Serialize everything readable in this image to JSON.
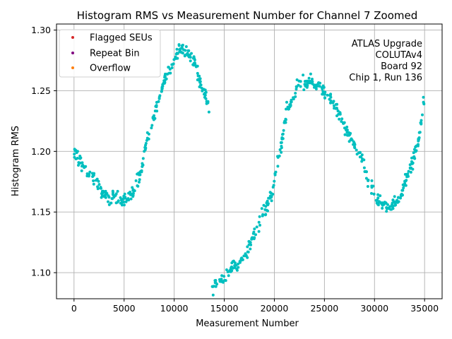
{
  "chart_data": {
    "type": "scatter",
    "title": "Histogram RMS vs Measurement Number for Channel 7 Zoomed",
    "xlabel": "Measurement Number",
    "ylabel": "Histogram RMS",
    "xlim": [
      -1750,
      36750
    ],
    "ylim": [
      1.0785,
      1.305
    ],
    "grid": true,
    "x_ticks": [
      0,
      5000,
      10000,
      15000,
      20000,
      25000,
      30000,
      35000
    ],
    "x_tick_labels": [
      "0",
      "5000",
      "10000",
      "15000",
      "20000",
      "25000",
      "30000",
      "35000"
    ],
    "y_ticks": [
      1.1,
      1.15,
      1.2,
      1.25,
      1.3
    ],
    "y_tick_labels": [
      "1.10",
      "1.15",
      "1.20",
      "1.25",
      "1.30"
    ],
    "legend": {
      "placement": "top-left",
      "entries": [
        {
          "label": "Flagged SEUs",
          "color": "#d62728"
        },
        {
          "label": "Repeat Bin",
          "color": "#800080"
        },
        {
          "label": "Overflow",
          "color": "#ff7f0e"
        }
      ]
    },
    "annotation_lines": [
      "ATLAS Upgrade",
      "COLUTAv4",
      "Board 92",
      "Chip 1, Run 136"
    ],
    "series": [
      {
        "name": "Histogram RMS",
        "color": "#00bfbf",
        "noise": 0.004,
        "points_per_segment": 230,
        "segments": [
          {
            "x": [
              0,
              800,
              1500,
              2200,
              3000,
              4000,
              5000,
              5800,
              6500,
              7500,
              8500,
              9500,
              10500,
              11200,
              12000,
              12700,
              13500
            ],
            "y": [
              1.2,
              1.19,
              1.182,
              1.174,
              1.164,
              1.161,
              1.16,
              1.164,
              1.178,
              1.215,
              1.245,
              1.268,
              1.285,
              1.283,
              1.275,
              1.255,
              1.235
            ]
          },
          {
            "x": [
              13800,
              15000,
              16000,
              17000,
              18000,
              19000,
              19800,
              20500,
              21300,
              22500,
              23500,
              24500,
              25500,
              26500,
              27500,
              28500,
              29500,
              30500,
              31500,
              32500,
              33500,
              34300,
              35000
            ],
            "y": [
              1.087,
              1.097,
              1.104,
              1.112,
              1.13,
              1.15,
              1.166,
              1.198,
              1.235,
              1.255,
              1.258,
              1.253,
              1.245,
              1.23,
              1.212,
              1.197,
              1.175,
              1.157,
              1.155,
              1.162,
              1.185,
              1.205,
              1.245
            ]
          }
        ]
      }
    ]
  }
}
